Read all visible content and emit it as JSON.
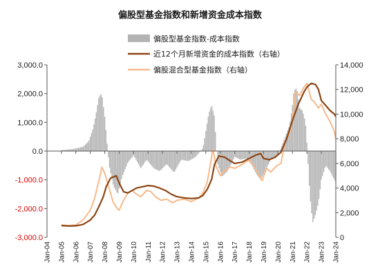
{
  "chart_data": {
    "type": "bar+line",
    "title": "偏股型基金指数和新增资金成本指数",
    "legend": {
      "placement": "top-right",
      "items": [
        {
          "key": "bars",
          "label": "偏股型基金指数-成本指数",
          "color": "#b3b3b3",
          "kind": "bar"
        },
        {
          "key": "cost",
          "label": "近12个月新增资金的成本指数（右轴）",
          "color": "#8b4513",
          "kind": "line"
        },
        {
          "key": "fund",
          "label": "偏股混合型基金指数（右轴）",
          "color": "#f7b98b",
          "kind": "line"
        }
      ]
    },
    "left_axis": {
      "range": [
        -3000,
        3000
      ],
      "ticks": [
        "3,000.0",
        "2,000.0",
        "1,000.0",
        "0.0",
        "-1,000.0",
        "-2,000.0",
        "-3,000.0"
      ],
      "tick_values": [
        3000,
        2000,
        1000,
        0,
        -1000,
        -2000,
        -3000
      ],
      "tick_colors": [
        "#1a1a1a",
        "#1a1a1a",
        "#1a1a1a",
        "#1a1a1a",
        "#e00000",
        "#e00000",
        "#e00000"
      ]
    },
    "right_axis": {
      "range": [
        0,
        14000
      ],
      "ticks": [
        "14,000",
        "12,000",
        "10,000",
        "8,000",
        "6,000",
        "4,000",
        "2,000",
        "0"
      ],
      "tick_values": [
        14000,
        12000,
        10000,
        8000,
        6000,
        4000,
        2000,
        0
      ]
    },
    "x_axis": {
      "range": [
        2004.0,
        2024.0
      ],
      "tick_labels": [
        "Jan-04",
        "Jan-05",
        "Jan-06",
        "Jan-07",
        "Jan-08",
        "Jan-09",
        "Jan-10",
        "Jan-11",
        "Jan-12",
        "Jan-13",
        "Jan-14",
        "Jan-15",
        "Jan-16",
        "Jan-17",
        "Jan-18",
        "Jan-19",
        "Jan-20",
        "Jan-21",
        "Jan-22",
        "Jan-23",
        "Jan-24"
      ],
      "tick_values": [
        2004,
        2005,
        2006,
        2007,
        2008,
        2009,
        2010,
        2011,
        2012,
        2013,
        2014,
        2015,
        2016,
        2017,
        2018,
        2019,
        2020,
        2021,
        2022,
        2023,
        2024
      ]
    },
    "series": [
      {
        "name": "偏股混合型基金指数（右轴）",
        "axis": "right",
        "x": [
          2005.0,
          2005.5,
          2006.0,
          2006.5,
          2007.0,
          2007.3,
          2007.6,
          2007.8,
          2008.0,
          2008.3,
          2008.6,
          2008.9,
          2009.0,
          2009.3,
          2009.6,
          2009.9,
          2010.2,
          2010.5,
          2010.9,
          2011.2,
          2011.5,
          2011.9,
          2012.3,
          2012.7,
          2013.0,
          2013.5,
          2014.0,
          2014.5,
          2014.8,
          2015.1,
          2015.4,
          2015.45,
          2015.55,
          2015.7,
          2016.0,
          2016.3,
          2016.7,
          2017.0,
          2017.5,
          2018.0,
          2018.2,
          2018.5,
          2018.9,
          2019.2,
          2019.5,
          2019.9,
          2020.2,
          2020.5,
          2020.8,
          2021.0,
          2021.2,
          2021.5,
          2021.8,
          2022.0,
          2022.3,
          2022.5,
          2022.8,
          2023.0,
          2023.3,
          2023.6,
          2023.9,
          2024.0
        ],
        "values": [
          1000,
          950,
          1000,
          1400,
          2200,
          3200,
          4600,
          5700,
          5200,
          4000,
          2800,
          2300,
          2200,
          3000,
          3600,
          3800,
          3500,
          3300,
          3800,
          3700,
          3300,
          3000,
          3100,
          2800,
          3000,
          3100,
          2900,
          3200,
          3600,
          4500,
          6500,
          7100,
          6800,
          5800,
          5000,
          5400,
          5700,
          5600,
          5900,
          6300,
          6000,
          5400,
          4600,
          5600,
          5300,
          5800,
          6000,
          7800,
          8500,
          9500,
          11800,
          11500,
          12200,
          12500,
          11200,
          11000,
          10500,
          10800,
          10000,
          9400,
          8600,
          8000
        ]
      },
      {
        "name": "近12个月新增资金的成本指数（右轴）",
        "axis": "right",
        "x": [
          2005.0,
          2005.5,
          2006.0,
          2006.5,
          2007.0,
          2007.3,
          2007.6,
          2007.9,
          2008.1,
          2008.4,
          2008.8,
          2009.0,
          2009.3,
          2009.6,
          2009.9,
          2010.2,
          2010.6,
          2011.0,
          2011.4,
          2011.8,
          2012.2,
          2012.6,
          2013.0,
          2013.5,
          2014.0,
          2014.5,
          2014.8,
          2015.1,
          2015.4,
          2015.6,
          2015.9,
          2016.3,
          2016.7,
          2017.0,
          2017.5,
          2018.0,
          2018.5,
          2018.8,
          2019.0,
          2019.4,
          2019.8,
          2020.2,
          2020.6,
          2021.0,
          2021.4,
          2021.8,
          2022.0,
          2022.3,
          2022.6,
          2022.8,
          2023.0,
          2023.3,
          2023.6,
          2023.9,
          2024.0
        ],
        "values": [
          950,
          920,
          930,
          1050,
          1400,
          1800,
          2500,
          3300,
          4100,
          4800,
          5000,
          4400,
          3700,
          3600,
          3800,
          4000,
          4100,
          4200,
          4150,
          4000,
          3800,
          3500,
          3300,
          3200,
          3150,
          3200,
          3400,
          3900,
          4700,
          5900,
          6600,
          6500,
          6200,
          6000,
          6100,
          6400,
          6700,
          6800,
          6400,
          6300,
          6500,
          6900,
          8000,
          9500,
          10800,
          11800,
          12200,
          12500,
          12400,
          12000,
          11100,
          10700,
          10300,
          10000,
          9800
        ]
      },
      {
        "name": "偏股型基金指数-成本指数",
        "axis": "left",
        "kind": "bar",
        "anchors_x": [
          2005.0,
          2005.8,
          2006.5,
          2006.9,
          2007.2,
          2007.4,
          2007.6,
          2007.8,
          2008.0,
          2008.3,
          2008.6,
          2008.9,
          2009.2,
          2009.6,
          2010.0,
          2010.5,
          2010.9,
          2011.4,
          2011.8,
          2012.3,
          2012.8,
          2013.3,
          2013.8,
          2014.3,
          2014.8,
          2015.0,
          2015.2,
          2015.4,
          2015.6,
          2015.8,
          2016.1,
          2016.5,
          2017.0,
          2017.4,
          2017.8,
          2018.2,
          2018.5,
          2018.8,
          2019.1,
          2019.5,
          2019.9,
          2020.2,
          2020.5,
          2020.8,
          2021.0,
          2021.1,
          2021.3,
          2021.5,
          2021.7,
          2021.9,
          2022.0,
          2022.2,
          2022.4,
          2022.6,
          2022.8,
          2023.0,
          2023.3,
          2023.6,
          2023.9,
          2024.0
        ],
        "anchors_y": [
          30,
          70,
          150,
          350,
          800,
          1300,
          1900,
          2000,
          1200,
          -500,
          -1200,
          -1500,
          -900,
          -400,
          -150,
          -600,
          -300,
          -600,
          -700,
          -450,
          -750,
          -300,
          -350,
          -200,
          100,
          700,
          1300,
          1600,
          1200,
          -400,
          -900,
          -700,
          -200,
          -300,
          -250,
          -500,
          -800,
          -1000,
          -700,
          -300,
          -200,
          100,
          500,
          900,
          1600,
          2100,
          2200,
          1500,
          1400,
          1000,
          300,
          -1500,
          -2500,
          -2200,
          -1800,
          -1000,
          -500,
          -700,
          -1000,
          -1100
        ]
      }
    ]
  }
}
